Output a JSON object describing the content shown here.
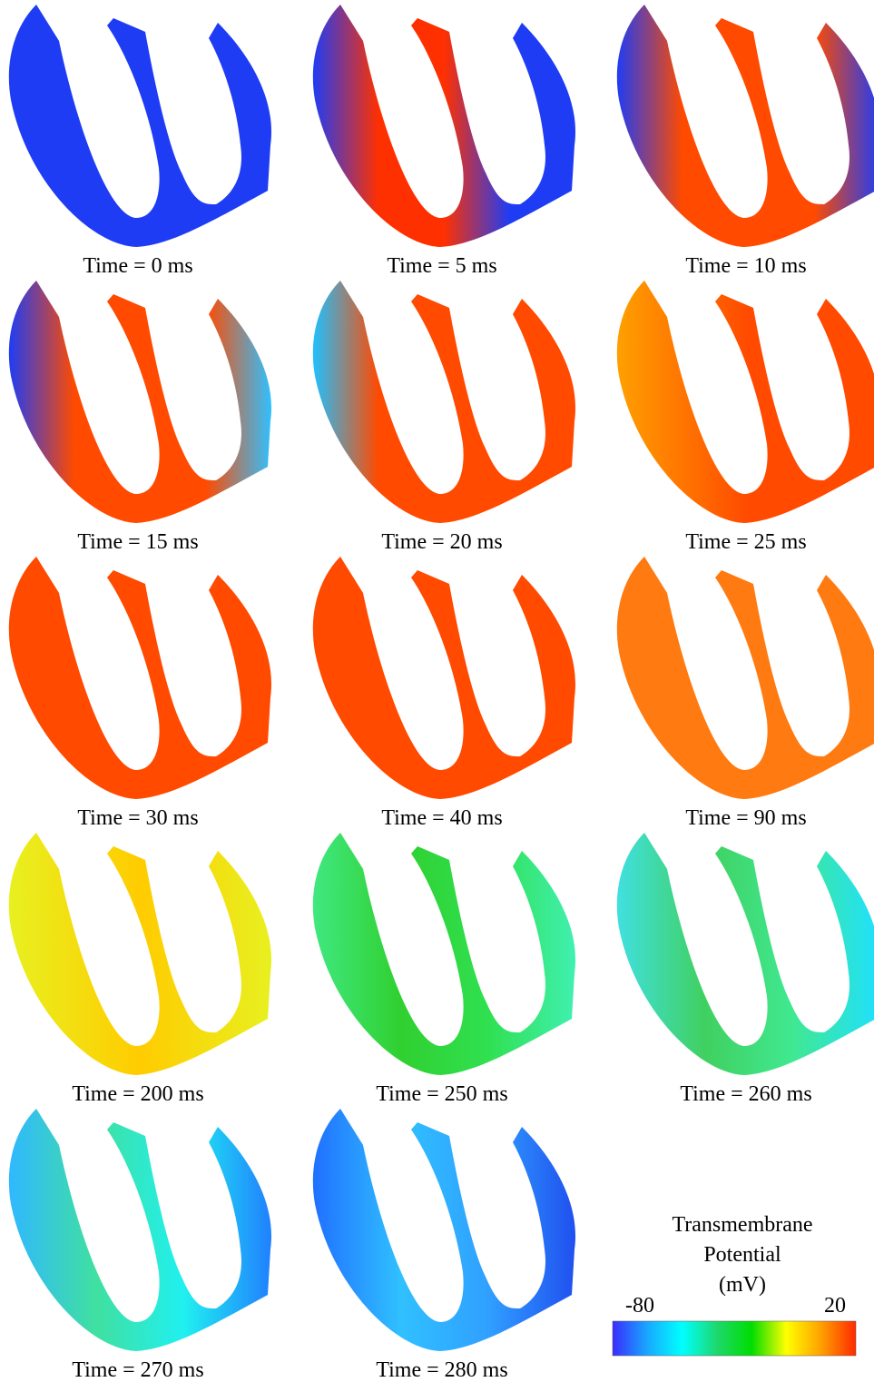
{
  "panels": [
    {
      "label": "Time = 0 ms",
      "colors": [
        "#1f3cf5"
      ]
    },
    {
      "label": "Time = 5 ms",
      "colors": [
        "#1f3cf5",
        "#ff3000",
        "#ff3000",
        "#1f3cf5",
        "#1f3cf5"
      ]
    },
    {
      "label": "Time = 10 ms",
      "colors": [
        "#1f3cf5",
        "#ff4a00",
        "#ff4a00",
        "#ff4a00",
        "#1f3cf5"
      ]
    },
    {
      "label": "Time = 15 ms",
      "colors": [
        "#1f3cf5",
        "#ff4a00",
        "#ff4a00",
        "#ff4a00",
        "#30c0ff"
      ]
    },
    {
      "label": "Time = 20 ms",
      "colors": [
        "#20c0ff",
        "#ff4a00",
        "#ff4a00",
        "#ff4a00",
        "#ff4a00"
      ]
    },
    {
      "label": "Time = 25 ms",
      "colors": [
        "#ffa000",
        "#ff4a00",
        "#ff4a00"
      ]
    },
    {
      "label": "Time = 30 ms",
      "colors": [
        "#ff4a00"
      ]
    },
    {
      "label": "Time = 40 ms",
      "colors": [
        "#ff4a00"
      ]
    },
    {
      "label": "Time = 90 ms",
      "colors": [
        "#ff7a10"
      ]
    },
    {
      "label": "Time = 200 ms",
      "colors": [
        "#e8f020",
        "#ffcc00",
        "#e8f020"
      ]
    },
    {
      "label": "Time = 250 ms",
      "colors": [
        "#40e880",
        "#30d030",
        "#30e050",
        "#40f0b0"
      ]
    },
    {
      "label": "Time = 260 ms",
      "colors": [
        "#40e0e0",
        "#40d060",
        "#40e890",
        "#20e0ff"
      ]
    },
    {
      "label": "Time = 270 ms",
      "colors": [
        "#30b8ff",
        "#40e0a0",
        "#20f0f0",
        "#2080ff"
      ]
    },
    {
      "label": "Time = 280 ms",
      "colors": [
        "#2070ff",
        "#30c0ff",
        "#30a0ff",
        "#2050f0"
      ]
    }
  ],
  "colorbar": {
    "title": [
      "Transmembrane",
      "Potential",
      "(mV)"
    ],
    "min_label": "-80",
    "max_label": "20",
    "colors": [
      "#3a2cff",
      "#18a8ff",
      "#00ffff",
      "#1dd86d",
      "#00dd00",
      "#ffff00",
      "#ffa000",
      "#ff2a00"
    ]
  }
}
